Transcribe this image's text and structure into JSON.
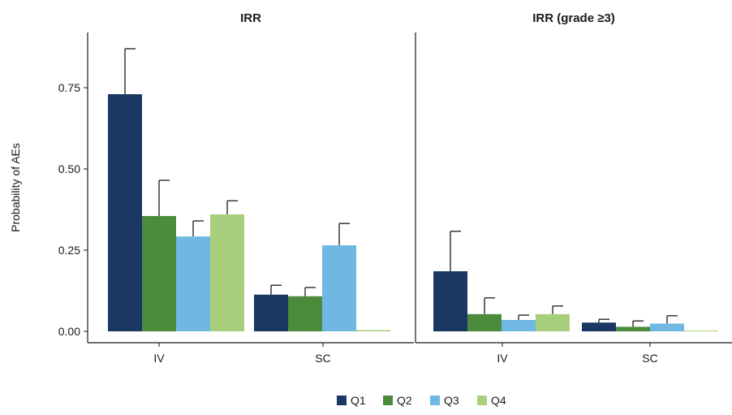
{
  "chart_data": {
    "type": "bar",
    "ylabel": "Probability of AEs",
    "ylim": [
      0,
      0.92
    ],
    "yticks": [
      0.0,
      0.25,
      0.5,
      0.75
    ],
    "ytick_labels": [
      "0.00",
      "0.25",
      "0.50",
      "0.75"
    ],
    "categories": [
      "IV",
      "SC"
    ],
    "series_names": [
      "Q1",
      "Q2",
      "Q3",
      "Q4"
    ],
    "colors": [
      "#1b3764",
      "#4a8c3c",
      "#6fb8e3",
      "#a8d07c"
    ],
    "error_bars": "upper",
    "legend_position": "bottom",
    "panels": [
      {
        "title": "IRR",
        "series": [
          {
            "name": "Q1",
            "values": [
              0.73,
              0.113
            ],
            "upper": [
              0.87,
              0.142
            ]
          },
          {
            "name": "Q2",
            "values": [
              0.355,
              0.108
            ],
            "upper": [
              0.465,
              0.135
            ]
          },
          {
            "name": "Q3",
            "values": [
              0.292,
              0.265
            ],
            "upper": [
              0.34,
              0.332
            ]
          },
          {
            "name": "Q4",
            "values": [
              0.36,
              0.004
            ],
            "upper": [
              0.402,
              0.004
            ]
          }
        ]
      },
      {
        "title": "IRR (grade ≥3)",
        "series": [
          {
            "name": "Q1",
            "values": [
              0.185,
              0.027
            ],
            "upper": [
              0.308,
              0.037
            ]
          },
          {
            "name": "Q2",
            "values": [
              0.053,
              0.014
            ],
            "upper": [
              0.103,
              0.032
            ]
          },
          {
            "name": "Q3",
            "values": [
              0.035,
              0.024
            ],
            "upper": [
              0.05,
              0.048
            ]
          },
          {
            "name": "Q4",
            "values": [
              0.053,
              0.002
            ],
            "upper": [
              0.078,
              0.002
            ]
          }
        ]
      }
    ]
  }
}
